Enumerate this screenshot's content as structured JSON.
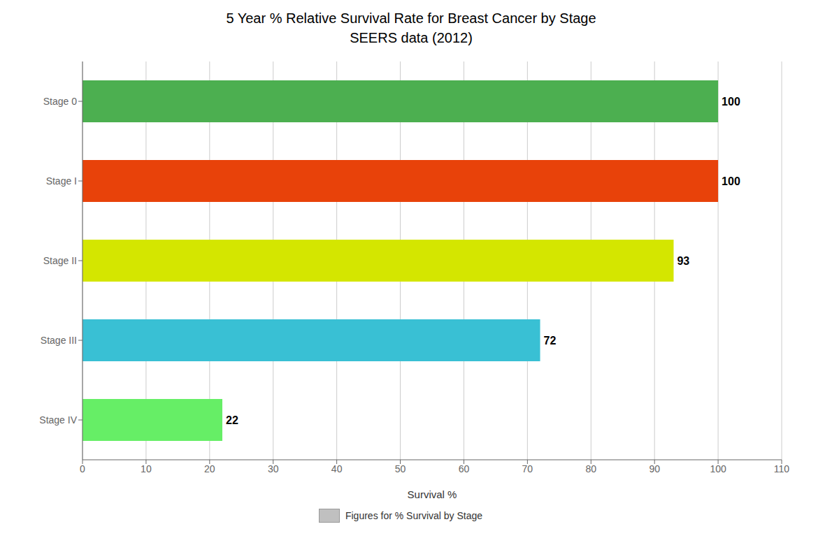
{
  "chart_data": {
    "type": "bar",
    "orientation": "horizontal",
    "title": "5 Year % Relative Survival Rate for Breast Cancer by Stage",
    "subtitle": "SEERS data (2012)",
    "categories": [
      "Stage 0",
      "Stage I",
      "Stage II",
      "Stage III",
      "Stage IV"
    ],
    "series": [
      {
        "name": "Figures for % Survival by Stage",
        "color": "#c0c0c0",
        "colors": [
          "#4caf50",
          "#e8420a",
          "#d4e600",
          "#39c0d4",
          "#66ee66"
        ],
        "values": [
          100,
          100,
          93,
          72,
          22
        ]
      }
    ],
    "xlabel": "Survival %",
    "xlim": [
      0,
      110
    ],
    "xticks": [
      0,
      10,
      20,
      30,
      40,
      50,
      60,
      70,
      80,
      90,
      100,
      110
    ],
    "grid": true,
    "legend": "bottom",
    "data_labels": true
  }
}
